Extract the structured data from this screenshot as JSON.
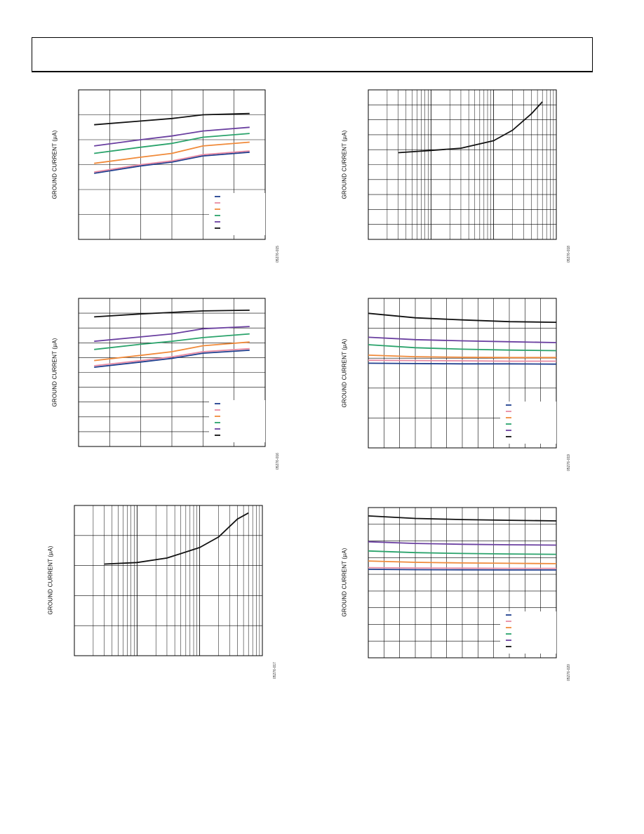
{
  "page": {
    "accent_colors": {
      "navy": "#1f3f8f",
      "pink": "#e88aa2",
      "orange": "#f08a3a",
      "green": "#2aa36b",
      "purple": "#6a3fa0",
      "black": "#111111"
    }
  },
  "chart_data": [
    {
      "type": "line",
      "ylabel": "GROUND CURRENT (µA)",
      "figure_id": "05276-015",
      "x_scale": "linear",
      "xlim": [
        0,
        6
      ],
      "ylim": [
        0,
        6
      ],
      "grid": true,
      "legend": "bottom-right",
      "series": [
        {
          "color": "#1f3f8f",
          "x": [
            0.5,
            2,
            3,
            4,
            5.5
          ],
          "y": [
            2.65,
            2.95,
            3.1,
            3.35,
            3.5
          ]
        },
        {
          "color": "#e88aa2",
          "x": [
            0.5,
            2,
            3,
            4,
            5.5
          ],
          "y": [
            2.7,
            3.0,
            3.15,
            3.4,
            3.55
          ]
        },
        {
          "color": "#f08a3a",
          "x": [
            0.5,
            2,
            3,
            4,
            5.5
          ],
          "y": [
            3.05,
            3.3,
            3.45,
            3.75,
            3.9
          ]
        },
        {
          "color": "#2aa36b",
          "x": [
            0.5,
            2,
            3,
            4,
            5.5
          ],
          "y": [
            3.45,
            3.7,
            3.85,
            4.1,
            4.25
          ]
        },
        {
          "color": "#6a3fa0",
          "x": [
            0.5,
            2,
            3,
            4,
            5.5
          ],
          "y": [
            3.75,
            4.0,
            4.15,
            4.35,
            4.5
          ]
        },
        {
          "color": "#111111",
          "x": [
            0.5,
            2,
            3,
            4,
            5.5
          ],
          "y": [
            4.6,
            4.75,
            4.85,
            5.0,
            5.05
          ]
        }
      ]
    },
    {
      "type": "line",
      "ylabel": "GROUND CURRENT (µA)",
      "figure_id": "05276-018",
      "x_scale": "log",
      "xlim": [
        1,
        1000
      ],
      "ylim": [
        0,
        10
      ],
      "grid": true,
      "legend": "none",
      "series": [
        {
          "color": "#111111",
          "x": [
            3,
            10,
            30,
            100,
            200,
            400,
            600
          ],
          "y": [
            5.8,
            5.95,
            6.1,
            6.6,
            7.3,
            8.4,
            9.2
          ]
        }
      ]
    },
    {
      "type": "line",
      "ylabel": "GROUND CURRENT (µA)",
      "figure_id": "05276-016",
      "x_scale": "linear",
      "xlim": [
        0,
        6
      ],
      "ylim": [
        0,
        10
      ],
      "grid": true,
      "legend": "bottom-right",
      "series": [
        {
          "color": "#1f3f8f",
          "x": [
            0.5,
            2,
            3,
            4,
            5.5
          ],
          "y": [
            5.35,
            5.7,
            5.95,
            6.3,
            6.5
          ]
        },
        {
          "color": "#e88aa2",
          "x": [
            0.5,
            2,
            3,
            4,
            5.5
          ],
          "y": [
            5.45,
            5.8,
            6.05,
            6.4,
            6.6
          ]
        },
        {
          "color": "#f08a3a",
          "x": [
            0.5,
            2,
            3,
            4,
            5.5
          ],
          "y": [
            5.8,
            6.15,
            6.4,
            6.8,
            7.05
          ]
        },
        {
          "color": "#2aa36b",
          "x": [
            0.5,
            2,
            3,
            4,
            5.5
          ],
          "y": [
            6.55,
            6.9,
            7.1,
            7.35,
            7.6
          ]
        },
        {
          "color": "#6a3fa0",
          "x": [
            0.5,
            2,
            3,
            4,
            5.5
          ],
          "y": [
            7.1,
            7.4,
            7.6,
            7.95,
            8.1
          ]
        },
        {
          "color": "#111111",
          "x": [
            0.5,
            2,
            3,
            4,
            5.5
          ],
          "y": [
            8.75,
            8.95,
            9.05,
            9.15,
            9.2
          ]
        }
      ]
    },
    {
      "type": "line",
      "ylabel": "GROUND CURRENT (µA)",
      "figure_id": "05276-019",
      "x_scale": "linear",
      "xlim": [
        0,
        12
      ],
      "ylim": [
        0,
        5
      ],
      "grid": true,
      "legend": "bottom-right",
      "series": [
        {
          "color": "#1f3f8f",
          "x": [
            0,
            3,
            6,
            9,
            12
          ],
          "y": [
            2.83,
            2.82,
            2.81,
            2.81,
            2.8
          ]
        },
        {
          "color": "#e88aa2",
          "x": [
            0,
            3,
            6,
            9,
            12
          ],
          "y": [
            2.93,
            2.92,
            2.91,
            2.9,
            2.9
          ]
        },
        {
          "color": "#f08a3a",
          "x": [
            0,
            3,
            6,
            9,
            12
          ],
          "y": [
            3.1,
            3.05,
            3.03,
            3.02,
            3.02
          ]
        },
        {
          "color": "#2aa36b",
          "x": [
            0,
            3,
            6,
            9,
            12
          ],
          "y": [
            3.45,
            3.35,
            3.3,
            3.27,
            3.25
          ]
        },
        {
          "color": "#6a3fa0",
          "x": [
            0,
            3,
            6,
            9,
            12
          ],
          "y": [
            3.7,
            3.62,
            3.58,
            3.55,
            3.52
          ]
        },
        {
          "color": "#111111",
          "x": [
            0,
            3,
            6,
            9,
            12
          ],
          "y": [
            4.5,
            4.35,
            4.28,
            4.22,
            4.2
          ]
        }
      ]
    },
    {
      "type": "line",
      "ylabel": "GROUND CURRENT (µA)",
      "figure_id": "05276-017",
      "x_scale": "log",
      "xlim": [
        1,
        1000
      ],
      "ylim": [
        0,
        5
      ],
      "grid": true,
      "legend": "none",
      "series": [
        {
          "color": "#111111",
          "x": [
            3,
            10,
            30,
            100,
            200,
            400,
            600
          ],
          "y": [
            3.05,
            3.1,
            3.25,
            3.6,
            3.95,
            4.55,
            4.75
          ]
        }
      ]
    },
    {
      "type": "line",
      "ylabel": "GROUND CURRENT (µA)",
      "figure_id": "05276-020",
      "x_scale": "linear",
      "xlim": [
        0,
        12
      ],
      "ylim": [
        0,
        9
      ],
      "grid": true,
      "legend": "bottom-right",
      "series": [
        {
          "color": "#1f3f8f",
          "x": [
            0,
            3,
            6,
            9,
            12
          ],
          "y": [
            5.3,
            5.28,
            5.27,
            5.26,
            5.26
          ]
        },
        {
          "color": "#e88aa2",
          "x": [
            0,
            3,
            6,
            9,
            12
          ],
          "y": [
            5.4,
            5.38,
            5.37,
            5.36,
            5.36
          ]
        },
        {
          "color": "#f08a3a",
          "x": [
            0,
            3,
            6,
            9,
            12
          ],
          "y": [
            5.8,
            5.72,
            5.68,
            5.66,
            5.64
          ]
        },
        {
          "color": "#2aa36b",
          "x": [
            0,
            3,
            6,
            9,
            12
          ],
          "y": [
            6.4,
            6.3,
            6.25,
            6.22,
            6.2
          ]
        },
        {
          "color": "#6a3fa0",
          "x": [
            0,
            3,
            6,
            9,
            12
          ],
          "y": [
            6.95,
            6.85,
            6.8,
            6.77,
            6.75
          ]
        },
        {
          "color": "#111111",
          "x": [
            0,
            3,
            6,
            9,
            12
          ],
          "y": [
            8.5,
            8.35,
            8.28,
            8.24,
            8.2
          ]
        }
      ]
    }
  ]
}
